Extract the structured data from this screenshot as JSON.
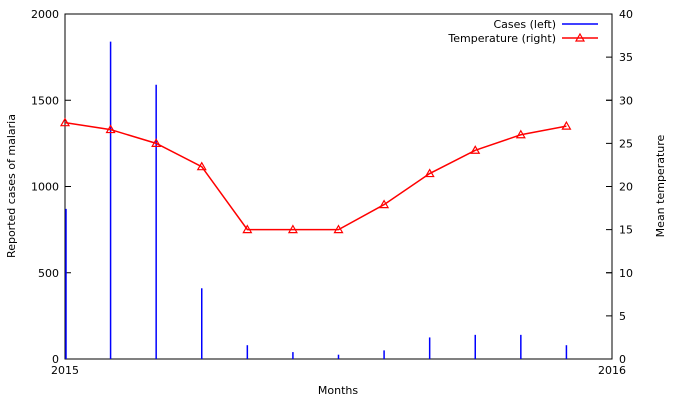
{
  "chart_data": {
    "type": "bar+line",
    "title": "",
    "xlabel": "Months",
    "ylabel_left": "Reported cases of malaria",
    "ylabel_right": "Mean temperature",
    "x_range": [
      "2015",
      "2016"
    ],
    "x_ticks": [
      "2015",
      "2016"
    ],
    "ylim_left": [
      0,
      2000
    ],
    "ylim_right": [
      0,
      40
    ],
    "yticks_left": [
      "0",
      "500",
      "1000",
      "1500",
      "2000"
    ],
    "yticks_right": [
      "0",
      "5",
      "10",
      "15",
      "20",
      "25",
      "30",
      "35",
      "40"
    ],
    "grid": false,
    "legend_position": "top-right",
    "months": [
      0,
      1,
      2,
      3,
      4,
      5,
      6,
      7,
      8,
      9,
      10,
      11
    ],
    "series": [
      {
        "name": "Cases  (left)",
        "axis": "left",
        "style": "impulses",
        "color": "#0000ff",
        "values": [
          870,
          1840,
          1590,
          410,
          80,
          40,
          25,
          50,
          125,
          140,
          140,
          80
        ]
      },
      {
        "name": "Temperature  (right)",
        "axis": "right",
        "style": "line-with-triangles",
        "color": "#ff0000",
        "values": [
          27.4,
          26.6,
          25.0,
          22.3,
          15.0,
          15.0,
          15.0,
          17.9,
          21.5,
          24.2,
          26.0,
          27.0
        ]
      }
    ]
  }
}
